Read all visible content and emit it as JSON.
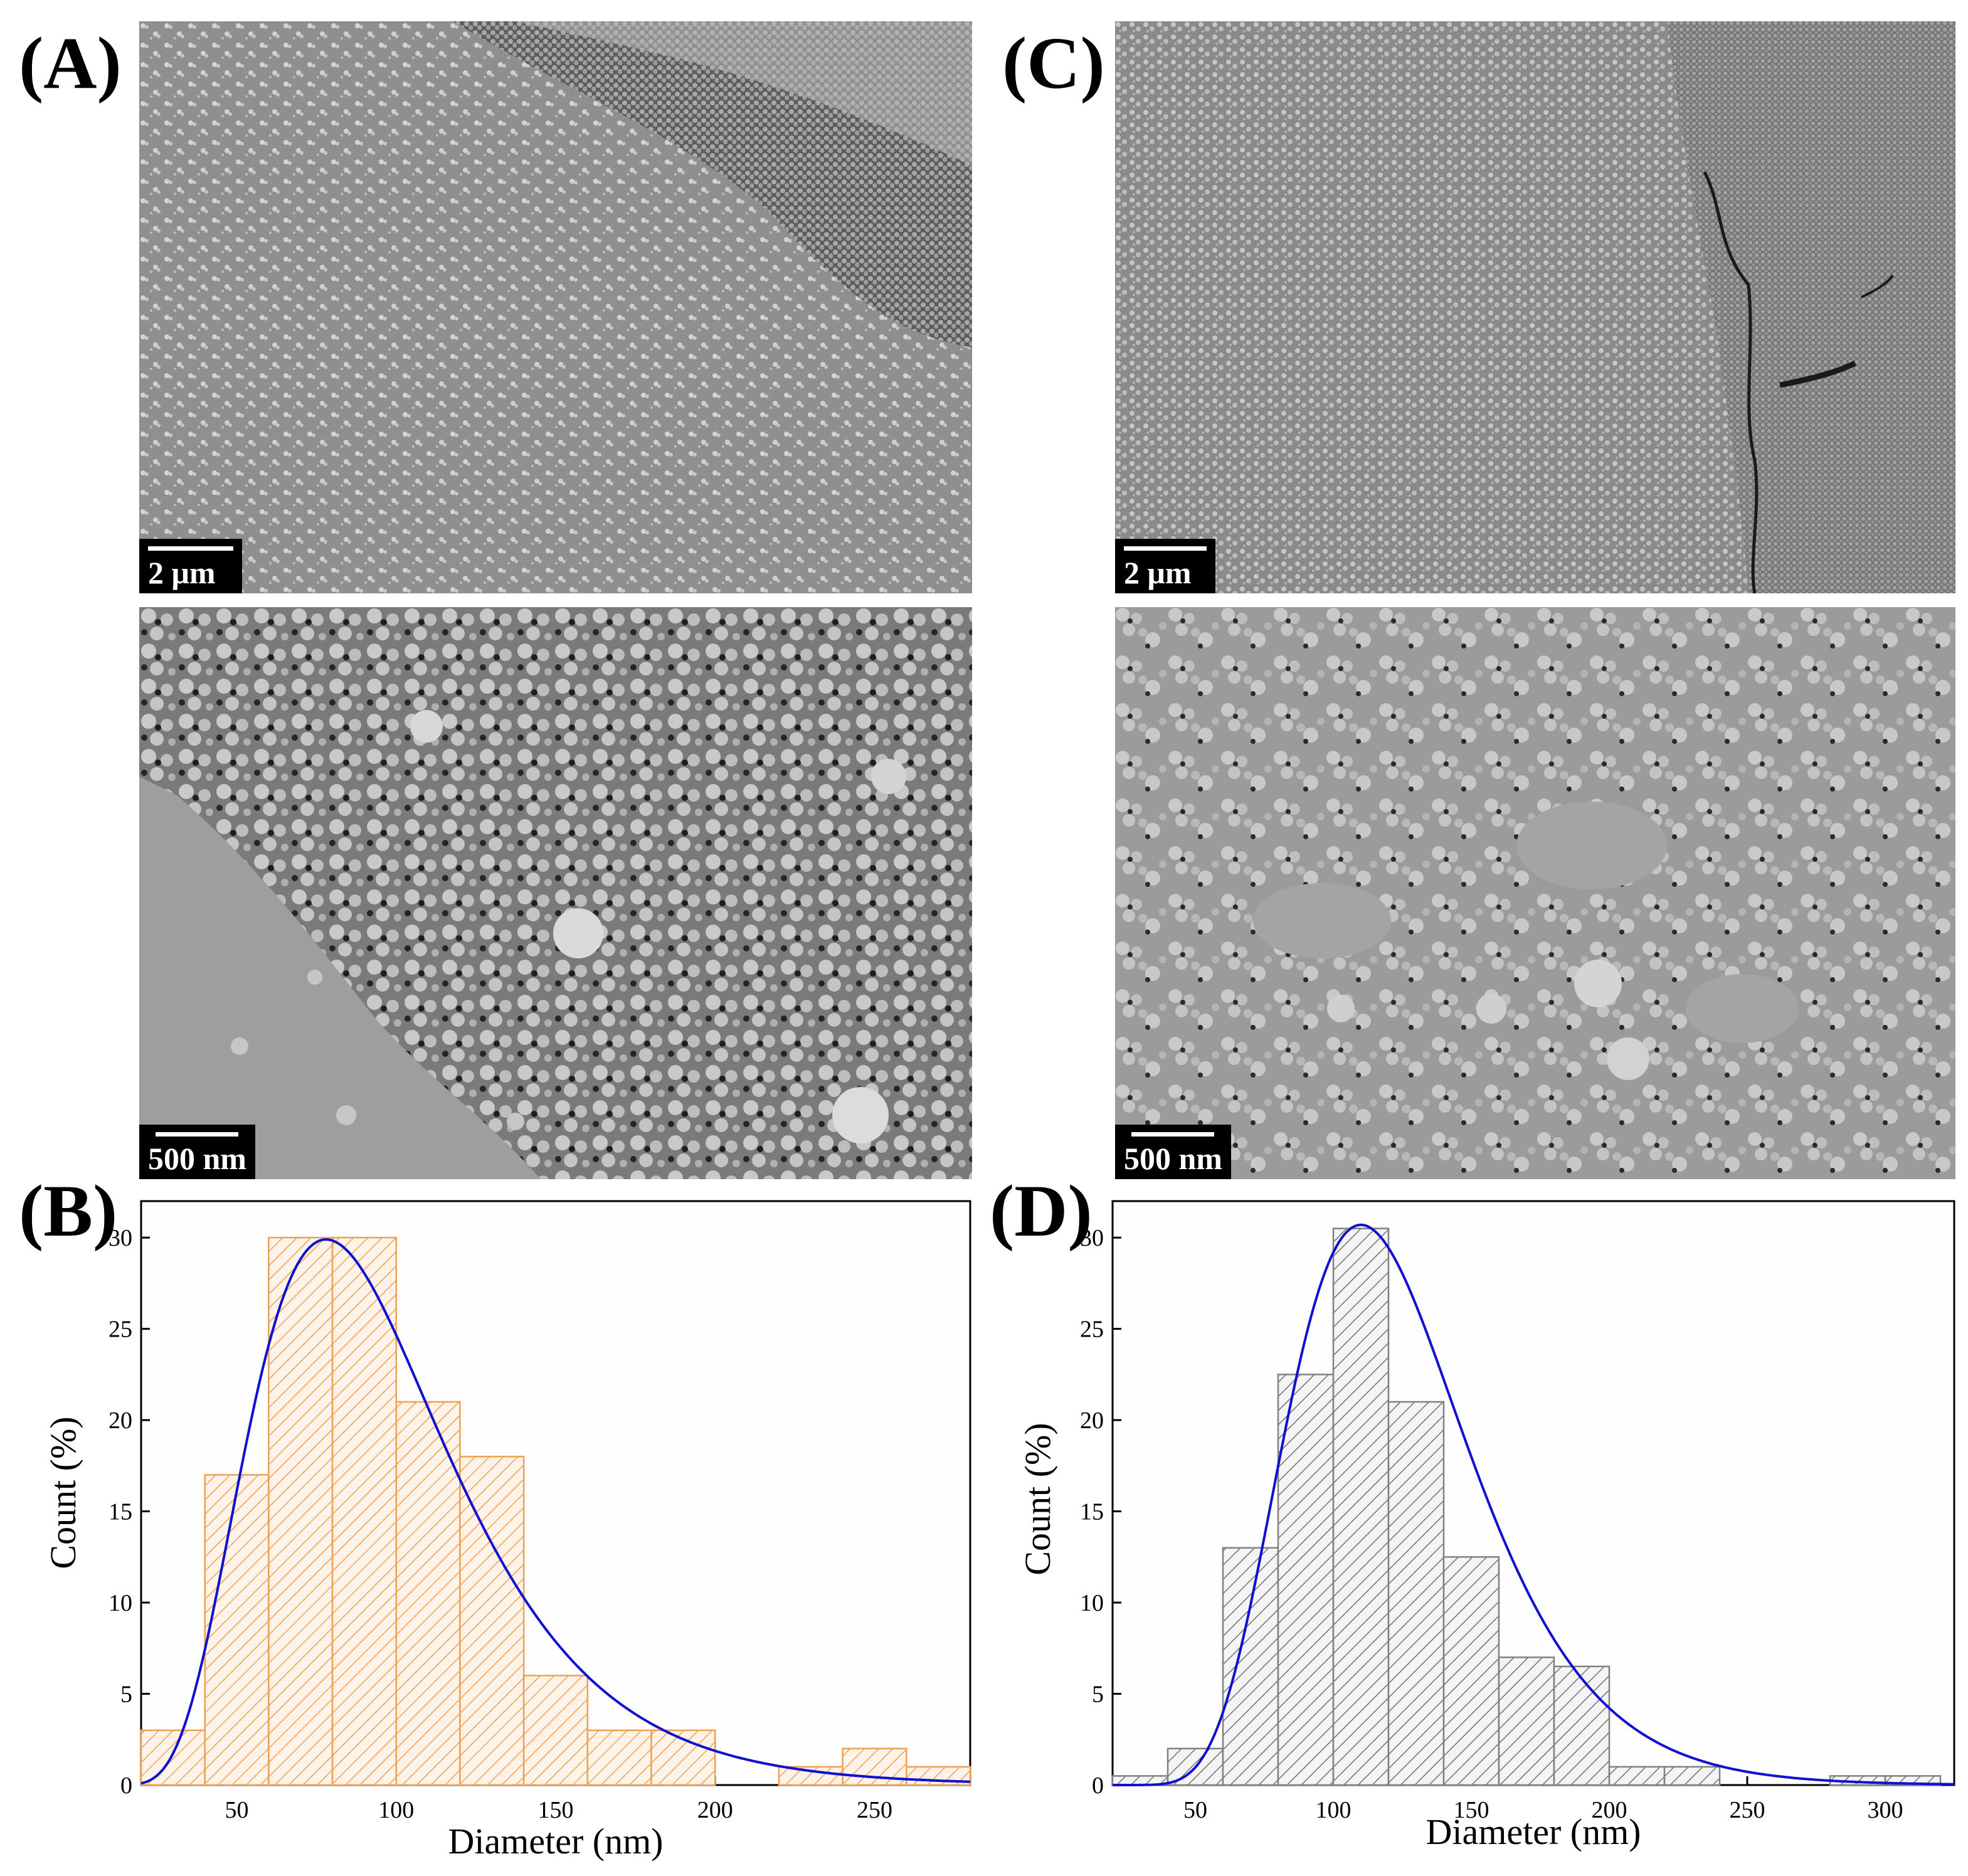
{
  "panels": {
    "A": "(A)",
    "B": "(B)",
    "C": "(C)",
    "D": "(D)"
  },
  "sem": {
    "A_top_scale": "2 μm",
    "A_bottom_scale": "500 nm",
    "C_top_scale": "2 μm",
    "C_bottom_scale": "500 nm"
  },
  "colors": {
    "B_bar": "#f0a050",
    "D_bar": "#808080",
    "fit": "#1010d0"
  },
  "chart_data": [
    {
      "id": "B",
      "type": "bar",
      "xlabel": "Diameter (nm)",
      "ylabel": "Count (%)",
      "xlim": [
        20,
        280
      ],
      "ylim": [
        0,
        32
      ],
      "xticks": [
        50,
        100,
        150,
        200,
        250
      ],
      "yticks": [
        0,
        5,
        10,
        15,
        20,
        25,
        30
      ],
      "bin_width": 20,
      "bins": [
        {
          "x0": 20,
          "value": 3
        },
        {
          "x0": 40,
          "value": 17
        },
        {
          "x0": 60,
          "value": 30
        },
        {
          "x0": 80,
          "value": 30
        },
        {
          "x0": 100,
          "value": 21
        },
        {
          "x0": 120,
          "value": 18
        },
        {
          "x0": 140,
          "value": 6
        },
        {
          "x0": 160,
          "value": 3
        },
        {
          "x0": 180,
          "value": 3
        },
        {
          "x0": 220,
          "value": 1
        },
        {
          "x0": 240,
          "value": 2
        },
        {
          "x0": 260,
          "value": 1
        }
      ],
      "fit": {
        "kind": "lognormal",
        "peak_x": 78,
        "peak_y": 29.9
      }
    },
    {
      "id": "D",
      "type": "bar",
      "xlabel": "Diameter (nm)",
      "ylabel": "Count (%)",
      "xlim": [
        20,
        325
      ],
      "ylim": [
        0,
        32
      ],
      "xticks": [
        50,
        100,
        150,
        200,
        250,
        300
      ],
      "yticks": [
        0,
        5,
        10,
        15,
        20,
        25,
        30
      ],
      "bin_width": 20,
      "bins": [
        {
          "x0": 20,
          "value": 0.5
        },
        {
          "x0": 40,
          "value": 2
        },
        {
          "x0": 60,
          "value": 13
        },
        {
          "x0": 80,
          "value": 22.5
        },
        {
          "x0": 100,
          "value": 30.5
        },
        {
          "x0": 120,
          "value": 21
        },
        {
          "x0": 140,
          "value": 12.5
        },
        {
          "x0": 160,
          "value": 7
        },
        {
          "x0": 180,
          "value": 6.5
        },
        {
          "x0": 200,
          "value": 1
        },
        {
          "x0": 220,
          "value": 1
        },
        {
          "x0": 280,
          "value": 0.5
        },
        {
          "x0": 300,
          "value": 0.5
        }
      ],
      "fit": {
        "kind": "lognormal",
        "peak_x": 110,
        "peak_y": 30.7
      }
    }
  ]
}
